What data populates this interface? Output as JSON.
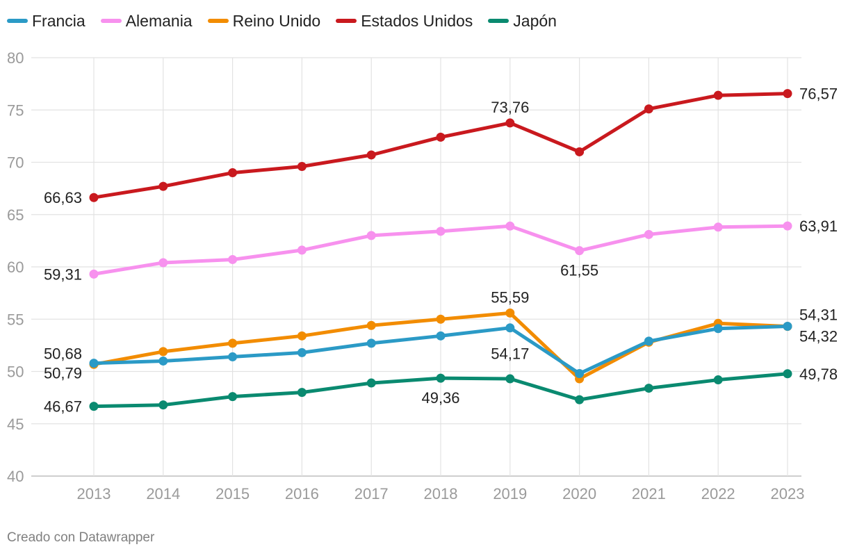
{
  "chart_data": {
    "type": "line",
    "x": [
      "2013",
      "2014",
      "2015",
      "2016",
      "2017",
      "2018",
      "2019",
      "2020",
      "2021",
      "2022",
      "2023"
    ],
    "ylim": [
      40,
      80
    ],
    "yticks": [
      40,
      45,
      50,
      55,
      60,
      65,
      70,
      75,
      80
    ],
    "grid": true,
    "legend_position": "top-left",
    "series": [
      {
        "name": "Francia",
        "color": "#2b9ac6",
        "values": [
          50.79,
          51.0,
          51.4,
          51.8,
          52.7,
          53.4,
          54.17,
          49.8,
          52.9,
          54.1,
          54.32
        ]
      },
      {
        "name": "Alemania",
        "color": "#f791ee",
        "values": [
          59.31,
          60.4,
          60.7,
          61.6,
          63.0,
          63.4,
          63.9,
          61.55,
          63.1,
          63.8,
          63.91
        ]
      },
      {
        "name": "Reino Unido",
        "color": "#f28c00",
        "values": [
          50.68,
          51.9,
          52.7,
          53.4,
          54.4,
          55.0,
          55.59,
          49.3,
          52.8,
          54.6,
          54.31
        ]
      },
      {
        "name": "Estados Unidos",
        "color": "#c9191e",
        "values": [
          66.63,
          67.7,
          69.0,
          69.6,
          70.7,
          72.4,
          73.76,
          71.0,
          75.1,
          76.4,
          76.57
        ]
      },
      {
        "name": "Japón",
        "color": "#0a8a70",
        "values": [
          46.67,
          46.8,
          47.6,
          48.0,
          48.9,
          49.36,
          49.3,
          47.3,
          48.4,
          49.2,
          49.78
        ]
      }
    ],
    "labels": [
      {
        "series": 3,
        "index": 0,
        "text": "66,63",
        "anchor": "left"
      },
      {
        "series": 3,
        "index": 6,
        "text": "73,76",
        "anchor": "above"
      },
      {
        "series": 3,
        "index": 10,
        "text": "76,57",
        "anchor": "right"
      },
      {
        "series": 1,
        "index": 0,
        "text": "59,31",
        "anchor": "left"
      },
      {
        "series": 1,
        "index": 7,
        "text": "61,55",
        "anchor": "below"
      },
      {
        "series": 1,
        "index": 10,
        "text": "63,91",
        "anchor": "right"
      },
      {
        "series": 2,
        "index": 0,
        "text": "50,68",
        "anchor": "left-up"
      },
      {
        "series": 2,
        "index": 6,
        "text": "55,59",
        "anchor": "above"
      },
      {
        "series": 2,
        "index": 10,
        "text": "54,31",
        "anchor": "right-up"
      },
      {
        "series": 0,
        "index": 0,
        "text": "50,79",
        "anchor": "left-down"
      },
      {
        "series": 0,
        "index": 6,
        "text": "54,17",
        "anchor": "below-far"
      },
      {
        "series": 0,
        "index": 10,
        "text": "54,32",
        "anchor": "right-down"
      },
      {
        "series": 4,
        "index": 0,
        "text": "46,67",
        "anchor": "left"
      },
      {
        "series": 4,
        "index": 5,
        "text": "49,36",
        "anchor": "below"
      },
      {
        "series": 4,
        "index": 10,
        "text": "49,78",
        "anchor": "right"
      }
    ],
    "draw_order": [
      1,
      3,
      2,
      0,
      4
    ]
  },
  "footer": "Creado con Datawrapper"
}
